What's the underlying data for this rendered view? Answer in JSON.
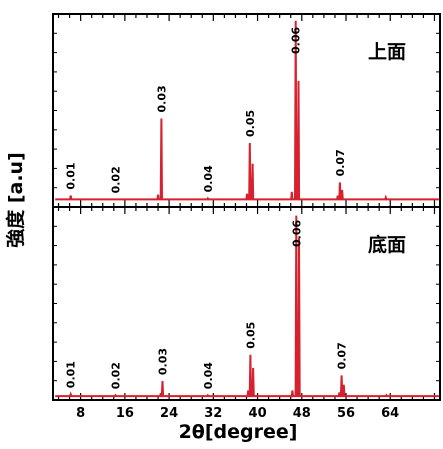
{
  "chart_data": {
    "type": "line",
    "xlabel": "2θ[degree]",
    "ylabel": "強度 [a.u]",
    "xlim": [
      3,
      73
    ],
    "xticks": [
      8,
      16,
      24,
      32,
      40,
      48,
      56,
      64
    ],
    "grid": false,
    "line_color": "#d7212e",
    "panels": [
      {
        "label": "上面",
        "baseline": 0.03,
        "peaks": [
          {
            "x": 6.2,
            "y": 0.05,
            "label": "0.01"
          },
          {
            "x": 14.3,
            "y": 0.03,
            "label": "0.02"
          },
          {
            "x": 22.0,
            "y": 0.055
          },
          {
            "x": 22.6,
            "y": 0.46,
            "label": "0.03"
          },
          {
            "x": 31.0,
            "y": 0.035,
            "label": "0.04"
          },
          {
            "x": 38.1,
            "y": 0.06
          },
          {
            "x": 38.6,
            "y": 0.33,
            "label": "0.05"
          },
          {
            "x": 39.1,
            "y": 0.22
          },
          {
            "x": 46.2,
            "y": 0.07
          },
          {
            "x": 46.9,
            "y": 0.98,
            "label": "0.06"
          },
          {
            "x": 47.4,
            "y": 0.66
          },
          {
            "x": 54.5,
            "y": 0.05
          },
          {
            "x": 54.9,
            "y": 0.12,
            "label": "0.07"
          },
          {
            "x": 55.3,
            "y": 0.08
          },
          {
            "x": 63.2,
            "y": 0.04
          }
        ]
      },
      {
        "label": "底面",
        "baseline": 0.01,
        "peaks": [
          {
            "x": 6.2,
            "y": 0.02,
            "label": "0.01"
          },
          {
            "x": 14.3,
            "y": 0.015,
            "label": "0.02"
          },
          {
            "x": 22.5,
            "y": 0.025
          },
          {
            "x": 22.8,
            "y": 0.09,
            "label": "0.03"
          },
          {
            "x": 31.0,
            "y": 0.015,
            "label": "0.04"
          },
          {
            "x": 38.3,
            "y": 0.04
          },
          {
            "x": 38.7,
            "y": 0.23,
            "label": "0.05"
          },
          {
            "x": 39.2,
            "y": 0.16
          },
          {
            "x": 46.3,
            "y": 0.04
          },
          {
            "x": 47.0,
            "y": 0.97,
            "label": "0.06"
          },
          {
            "x": 47.5,
            "y": 0.85
          },
          {
            "x": 54.8,
            "y": 0.03
          },
          {
            "x": 55.2,
            "y": 0.12,
            "label": "0.07"
          },
          {
            "x": 55.6,
            "y": 0.07
          },
          {
            "x": 63.3,
            "y": 0.015
          }
        ]
      }
    ]
  }
}
